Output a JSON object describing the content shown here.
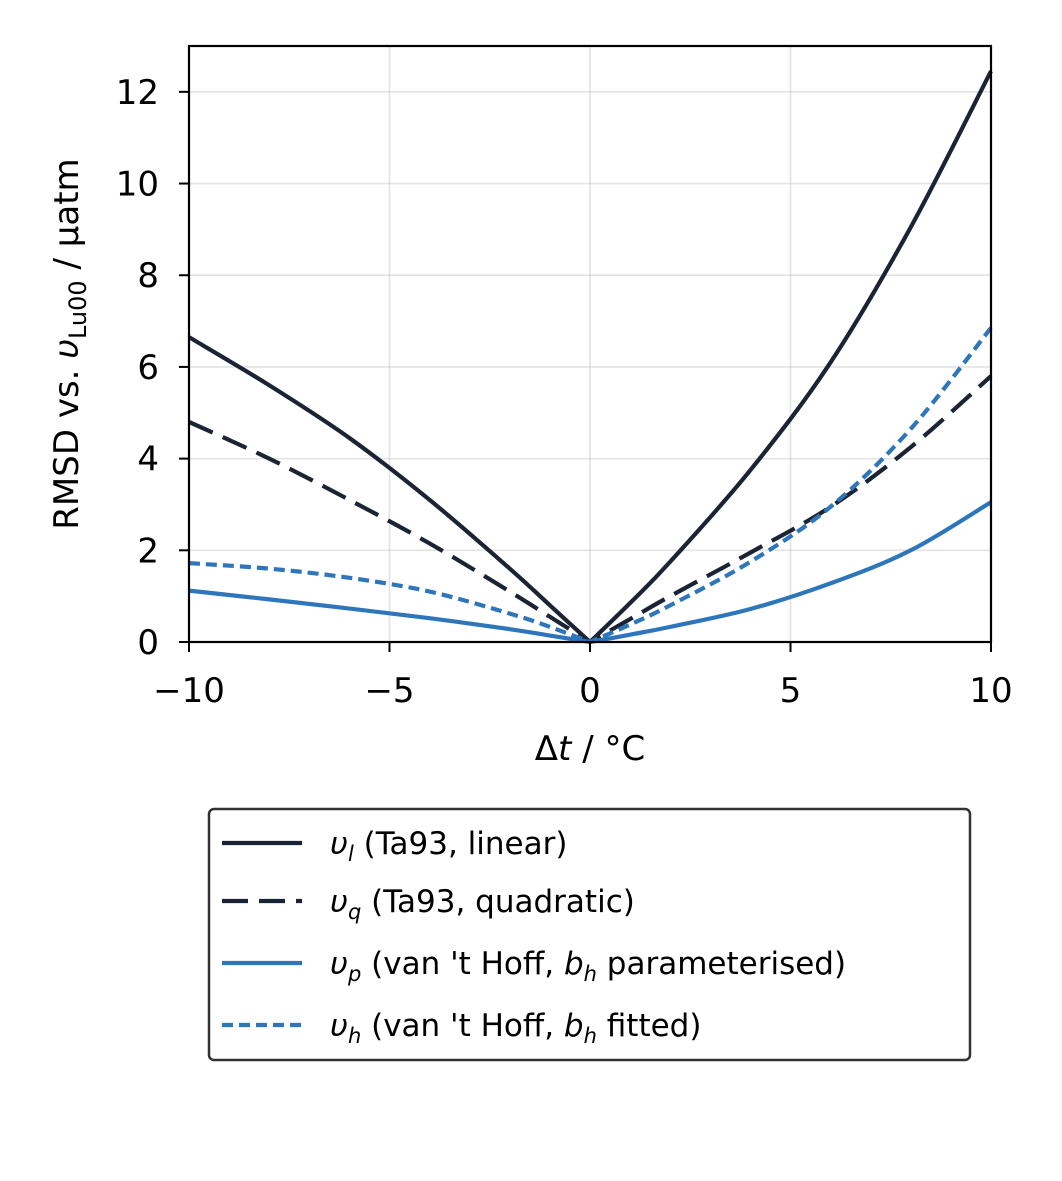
{
  "chart_data": {
    "type": "line",
    "xlabel": "Δt / °C",
    "ylabel": "RMSD vs. υLu00 / μatm",
    "xlim": [
      -10,
      10
    ],
    "ylim": [
      0,
      13
    ],
    "xticks": [
      -10,
      -5,
      0,
      5,
      10
    ],
    "yticks": [
      0,
      2,
      4,
      6,
      8,
      10,
      12
    ],
    "xtick_labels": [
      "−10",
      "−5",
      "0",
      "5",
      "10"
    ],
    "ytick_labels": [
      "0",
      "2",
      "4",
      "6",
      "8",
      "10",
      "12"
    ],
    "grid": true,
    "legend_position": "below",
    "series": [
      {
        "name": "υl (Ta93, linear)",
        "color": "#1b2434",
        "dash": "solid",
        "x": [
          -10,
          -8,
          -6,
          -4,
          -2,
          -1,
          0,
          1,
          2,
          4,
          6,
          8,
          10
        ],
        "y": [
          6.65,
          5.6,
          4.45,
          3.1,
          1.6,
          0.8,
          0,
          0.85,
          1.75,
          3.75,
          6.1,
          9.05,
          12.45
        ]
      },
      {
        "name": "υq (Ta93, quadratic)",
        "color": "#1b2434",
        "dash": "dashed",
        "x": [
          -10,
          -8,
          -6,
          -4,
          -2,
          -1,
          0,
          1,
          2,
          4,
          6,
          8,
          10
        ],
        "y": [
          4.8,
          4.0,
          3.1,
          2.15,
          1.1,
          0.55,
          0,
          0.5,
          1.0,
          1.95,
          2.95,
          4.25,
          5.8
        ]
      },
      {
        "name": "υp (van 't Hoff, bh parameterised)",
        "color": "#2e76bb",
        "dash": "solid",
        "x": [
          -10,
          -8,
          -6,
          -4,
          -2,
          -1,
          0,
          1,
          2,
          4,
          6,
          8,
          10
        ],
        "y": [
          1.12,
          0.93,
          0.73,
          0.52,
          0.28,
          0.14,
          0,
          0.16,
          0.33,
          0.72,
          1.28,
          2.0,
          3.05
        ]
      },
      {
        "name": "υh (van 't Hoff, bh fitted)",
        "color": "#2e76bb",
        "dash": "dotted",
        "x": [
          -10,
          -8,
          -6,
          -4,
          -2,
          -1,
          0,
          1,
          2,
          4,
          6,
          8,
          10
        ],
        "y": [
          1.72,
          1.6,
          1.4,
          1.1,
          0.62,
          0.33,
          0,
          0.38,
          0.8,
          1.75,
          2.95,
          4.65,
          6.85
        ]
      }
    ]
  },
  "legend": {
    "entries": [
      {
        "symbol": "υ",
        "sub": "l",
        "text": " (Ta93, linear)"
      },
      {
        "symbol": "υ",
        "sub": "q",
        "text": " (Ta93, quadratic)"
      },
      {
        "symbol": "υ",
        "sub": "p",
        "text": " (van 't Hoff, ",
        "var": "b",
        "varsub": "h",
        "tail": " parameterised)"
      },
      {
        "symbol": "υ",
        "sub": "h",
        "text": " (van 't Hoff, ",
        "var": "b",
        "varsub": "h",
        "tail": " fitted)"
      }
    ]
  }
}
